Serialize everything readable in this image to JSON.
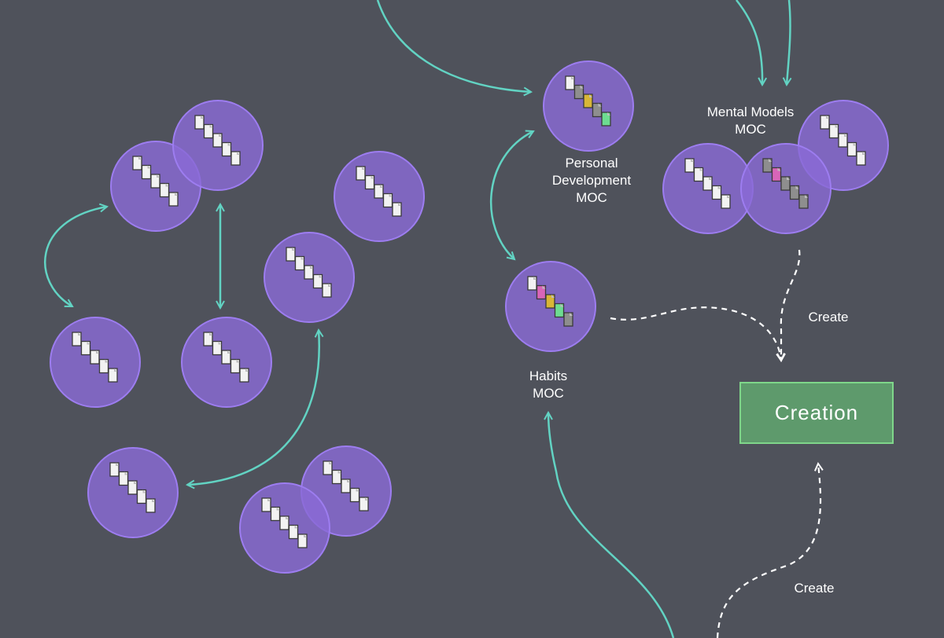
{
  "colors": {
    "background": "#4f525b",
    "circle_fill": "#8a6ad6",
    "circle_stroke": "#9d7df0",
    "arrow_solid": "#62d3c3",
    "arrow_dashed": "#ffffff",
    "note_default": "#f2f2f2",
    "note_gray": "#8e8e8e",
    "note_yellow": "#d8b637",
    "note_green": "#6ddc91",
    "note_pink": "#d865b8",
    "creation_fill": "#5e9a6c",
    "creation_stroke": "#7fd68a"
  },
  "labels": {
    "personal_development": [
      "Personal",
      "Development",
      "MOC"
    ],
    "mental_models": [
      "Mental Models",
      "MOC"
    ],
    "habits": [
      "Habits",
      "MOC"
    ],
    "create_top": "Create",
    "create_bottom": "Create"
  },
  "creation_box": {
    "label": "Creation"
  },
  "icons": {
    "note_cluster": "note-stack-icon",
    "arrow": "arrowhead-icon"
  }
}
